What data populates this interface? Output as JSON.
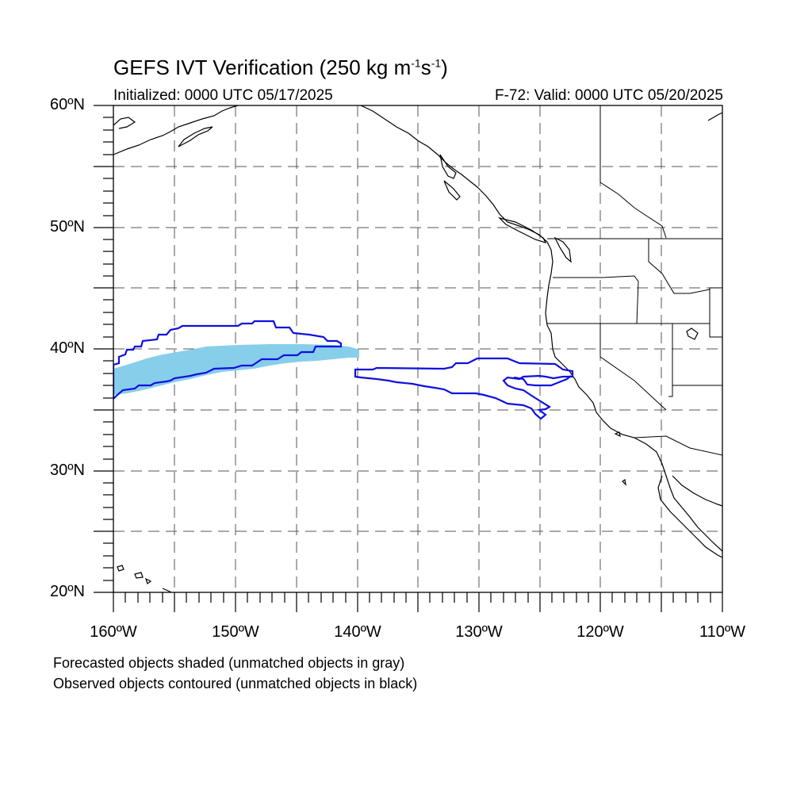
{
  "title": {
    "prefix": "GEFS IVT Verification (250 kg m",
    "exp1": "-1",
    "mid": "s",
    "exp2": "-1",
    "suffix": ")"
  },
  "subtitle_left": "Initialized: 0000 UTC 05/17/2025",
  "subtitle_right": "F-72: Valid: 0000 UTC 05/20/2025",
  "axes": {
    "lat_labels": [
      "60ºN",
      "50ºN",
      "40ºN",
      "30ºN",
      "20ºN"
    ],
    "lon_labels": [
      "160ºW",
      "150ºW",
      "140ºW",
      "130ºW",
      "120ºW",
      "110ºW"
    ],
    "lon_range": [
      -160,
      -110
    ],
    "lat_range": [
      20,
      60
    ],
    "grid": true
  },
  "legend_notes": [
    "Forecasted objects shaded (unmatched objects in gray)",
    "Observed objects contoured (unmatched objects in black)"
  ],
  "colors": {
    "forecast_fill": "#87ceeb",
    "observed_contour": "#1010e0",
    "coastline": "#000000",
    "grid": "#555555"
  },
  "objects": {
    "forecast_shaded": [
      {
        "status": "matched",
        "lon_extent": [
          -160,
          -140
        ],
        "lat_extent": [
          36.4,
          40.2
        ]
      }
    ],
    "observed_contours": [
      {
        "status": "matched",
        "lon_extent": [
          -160,
          -141
        ],
        "lat_extent": [
          35.8,
          42.3
        ]
      },
      {
        "status": "matched",
        "lon_extent": [
          -140,
          -122
        ],
        "lat_extent": [
          34.5,
          39.3
        ]
      }
    ]
  }
}
